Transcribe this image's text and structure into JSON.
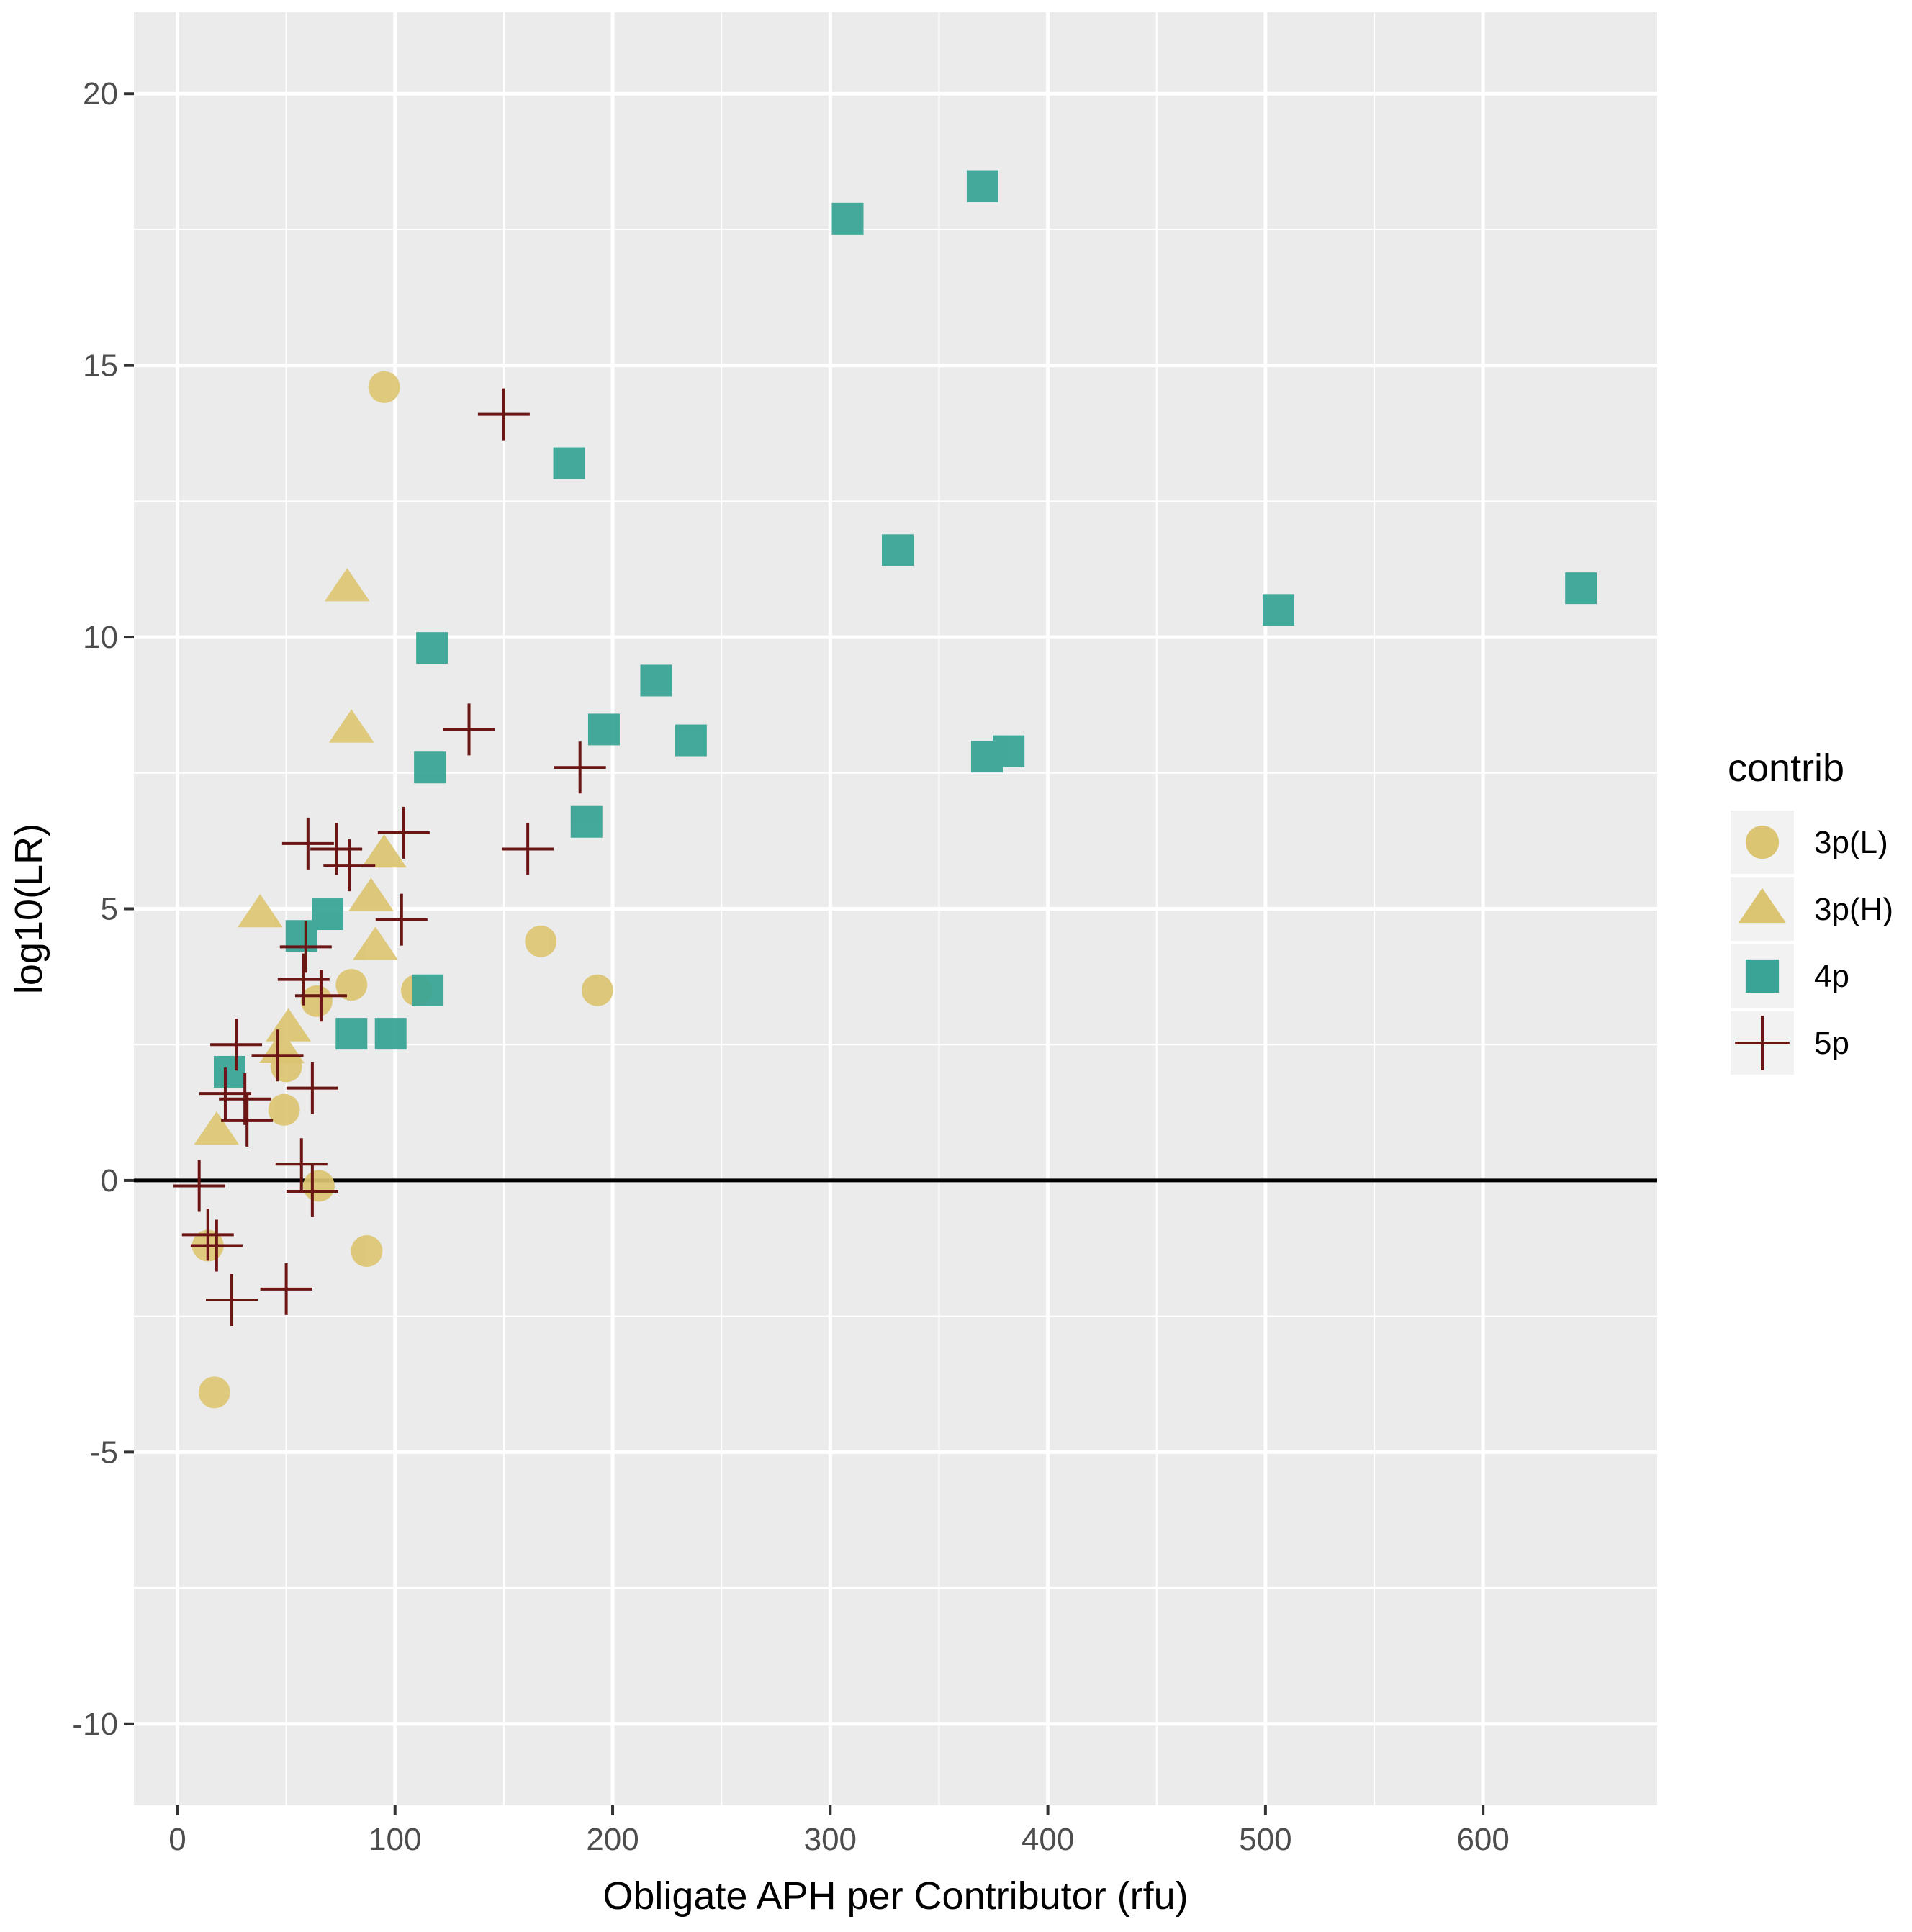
{
  "chart_data": {
    "type": "scatter",
    "title": "",
    "xlabel": "Obligate APH per Contributor (rfu)",
    "ylabel": "log10(LR)",
    "xlim": [
      -20,
      680
    ],
    "ylim": [
      -11.5,
      21.5
    ],
    "x_ticks": [
      0,
      100,
      200,
      300,
      400,
      500,
      600
    ],
    "y_ticks": [
      -10,
      -5,
      0,
      5,
      10,
      15,
      20
    ],
    "x_tick_labels": [
      "0",
      "100",
      "200",
      "300",
      "400",
      "500",
      "600"
    ],
    "y_tick_labels": [
      "-10",
      "-5",
      "0",
      "5",
      "10",
      "15",
      "20"
    ],
    "grid": true,
    "reference_line": {
      "y": 0,
      "color": "#000000"
    },
    "legend": {
      "title": "contrib",
      "position": "right"
    },
    "series": [
      {
        "name": "3p(L)",
        "shape": "circle",
        "color": "#dcc572",
        "points": [
          {
            "x": 95,
            "y": 14.6
          },
          {
            "x": 167,
            "y": 4.4
          },
          {
            "x": 193,
            "y": 3.5
          },
          {
            "x": 80,
            "y": 3.6
          },
          {
            "x": 64,
            "y": 3.3
          },
          {
            "x": 50,
            "y": 2.1
          },
          {
            "x": 49,
            "y": 1.3
          },
          {
            "x": 65,
            "y": -0.1
          },
          {
            "x": 14,
            "y": -1.2
          },
          {
            "x": 87,
            "y": -1.3
          },
          {
            "x": 17,
            "y": -3.9
          },
          {
            "x": 110,
            "y": 3.5
          }
        ]
      },
      {
        "name": "3p(H)",
        "shape": "triangle",
        "color": "#dcc572",
        "points": [
          {
            "x": 78,
            "y": 10.9
          },
          {
            "x": 80,
            "y": 8.3
          },
          {
            "x": 95,
            "y": 6.0
          },
          {
            "x": 89,
            "y": 5.2
          },
          {
            "x": 38,
            "y": 4.9
          },
          {
            "x": 91,
            "y": 4.3
          },
          {
            "x": 51,
            "y": 2.8
          },
          {
            "x": 48,
            "y": 2.4
          },
          {
            "x": 18,
            "y": 0.9
          }
        ]
      },
      {
        "name": "4p",
        "shape": "square",
        "color": "#3aa596",
        "points": [
          {
            "x": 370,
            "y": 18.3
          },
          {
            "x": 308,
            "y": 17.7
          },
          {
            "x": 180,
            "y": 13.2
          },
          {
            "x": 331,
            "y": 11.6
          },
          {
            "x": 645,
            "y": 10.9
          },
          {
            "x": 506,
            "y": 10.5
          },
          {
            "x": 117,
            "y": 9.8
          },
          {
            "x": 220,
            "y": 9.2
          },
          {
            "x": 196,
            "y": 8.3
          },
          {
            "x": 236,
            "y": 8.1
          },
          {
            "x": 382,
            "y": 7.9
          },
          {
            "x": 372,
            "y": 7.8
          },
          {
            "x": 116,
            "y": 7.6
          },
          {
            "x": 188,
            "y": 6.6
          },
          {
            "x": 69,
            "y": 4.9
          },
          {
            "x": 57,
            "y": 4.5
          },
          {
            "x": 115,
            "y": 3.5
          },
          {
            "x": 80,
            "y": 2.7
          },
          {
            "x": 98,
            "y": 2.7
          },
          {
            "x": 24,
            "y": 2.0
          }
        ]
      },
      {
        "name": "5p",
        "shape": "cross",
        "color": "#6b1515",
        "points": [
          {
            "x": 150,
            "y": 14.1
          },
          {
            "x": 134,
            "y": 8.3
          },
          {
            "x": 185,
            "y": 7.6
          },
          {
            "x": 104,
            "y": 6.4
          },
          {
            "x": 60,
            "y": 6.2
          },
          {
            "x": 73,
            "y": 6.1
          },
          {
            "x": 161,
            "y": 6.1
          },
          {
            "x": 79,
            "y": 5.8
          },
          {
            "x": 103,
            "y": 4.8
          },
          {
            "x": 59,
            "y": 4.3
          },
          {
            "x": 58,
            "y": 3.7
          },
          {
            "x": 66,
            "y": 3.4
          },
          {
            "x": 27,
            "y": 2.5
          },
          {
            "x": 46,
            "y": 2.3
          },
          {
            "x": 22,
            "y": 1.6
          },
          {
            "x": 62,
            "y": 1.7
          },
          {
            "x": 31,
            "y": 1.5
          },
          {
            "x": 32,
            "y": 1.1
          },
          {
            "x": 57,
            "y": 0.3
          },
          {
            "x": 62,
            "y": -0.2
          },
          {
            "x": 10,
            "y": -0.1
          },
          {
            "x": 14,
            "y": -1.0
          },
          {
            "x": 18,
            "y": -1.2
          },
          {
            "x": 25,
            "y": -2.2
          },
          {
            "x": 50,
            "y": -2.0
          }
        ]
      }
    ]
  }
}
